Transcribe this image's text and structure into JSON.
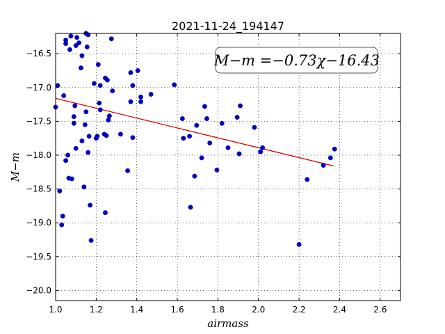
{
  "chart_data": {
    "type": "scatter",
    "title": "2021-11-24_194147",
    "xlabel": "airmass",
    "ylabel": "M−m",
    "xlim": [
      1.0,
      2.7
    ],
    "ylim": [
      -20.15,
      -16.2
    ],
    "y_inverted": true,
    "grid": true,
    "grid_style": "dotted",
    "x_ticks": [
      1.0,
      1.2,
      1.4,
      1.6,
      1.8,
      2.0,
      2.2,
      2.4,
      2.6
    ],
    "x_tick_labels": [
      "1.0",
      "1.2",
      "1.4",
      "1.6",
      "1.8",
      "2.0",
      "2.2",
      "2.4",
      "2.6"
    ],
    "y_ticks": [
      -16.5,
      -17.0,
      -17.5,
      -18.0,
      -18.5,
      -19.0,
      -19.5,
      -20.0
    ],
    "y_tick_labels": [
      "−16.5",
      "−17.0",
      "−17.5",
      "−18.0",
      "−18.5",
      "−19.0",
      "−19.5",
      "−20.0"
    ],
    "annotation": "M−m =−0.73χ−16.43",
    "fit": {
      "slope": -0.73,
      "intercept": -16.43,
      "x_range": [
        1.0,
        2.37
      ],
      "color": "#d00000"
    },
    "point_color": "#0000cc",
    "points": [
      [
        1.0,
        -17.29
      ],
      [
        1.01,
        -16.97
      ],
      [
        1.02,
        -18.53
      ],
      [
        1.03,
        -19.03
      ],
      [
        1.035,
        -18.9
      ],
      [
        1.04,
        -17.12
      ],
      [
        1.05,
        -16.3
      ],
      [
        1.05,
        -16.35
      ],
      [
        1.05,
        -18.08
      ],
      [
        1.06,
        -18.0
      ],
      [
        1.065,
        -18.34
      ],
      [
        1.07,
        -16.44
      ],
      [
        1.075,
        -16.24
      ],
      [
        1.08,
        -18.35
      ],
      [
        1.09,
        -17.43
      ],
      [
        1.09,
        -17.53
      ],
      [
        1.095,
        -17.27
      ],
      [
        1.1,
        -16.38
      ],
      [
        1.1,
        -17.9
      ],
      [
        1.105,
        -16.26
      ],
      [
        1.115,
        -16.34
      ],
      [
        1.125,
        -16.71
      ],
      [
        1.13,
        -16.53
      ],
      [
        1.13,
        -17.79
      ],
      [
        1.14,
        -18.47
      ],
      [
        1.145,
        -17.55
      ],
      [
        1.15,
        -16.2
      ],
      [
        1.15,
        -17.36
      ],
      [
        1.155,
        -16.4
      ],
      [
        1.16,
        -16.22
      ],
      [
        1.16,
        -17.96
      ],
      [
        1.165,
        -17.72
      ],
      [
        1.17,
        -18.74
      ],
      [
        1.175,
        -19.26
      ],
      [
        1.19,
        -16.94
      ],
      [
        1.2,
        -17.75
      ],
      [
        1.205,
        -17.72
      ],
      [
        1.21,
        -16.66
      ],
      [
        1.215,
        -17.23
      ],
      [
        1.22,
        -17.33
      ],
      [
        1.22,
        -16.97
      ],
      [
        1.24,
        -17.69
      ],
      [
        1.245,
        -16.86
      ],
      [
        1.245,
        -18.85
      ],
      [
        1.25,
        -17.71
      ],
      [
        1.255,
        -16.89
      ],
      [
        1.26,
        -17.48
      ],
      [
        1.265,
        -17.42
      ],
      [
        1.275,
        -16.28
      ],
      [
        1.28,
        -17.05
      ],
      [
        1.32,
        -17.69
      ],
      [
        1.355,
        -18.23
      ],
      [
        1.37,
        -17.21
      ],
      [
        1.37,
        -16.78
      ],
      [
        1.38,
        -16.97
      ],
      [
        1.38,
        -17.74
      ],
      [
        1.405,
        -16.75
      ],
      [
        1.42,
        -17.14
      ],
      [
        1.42,
        -17.21
      ],
      [
        1.47,
        -17.1
      ],
      [
        1.585,
        -16.96
      ],
      [
        1.625,
        -17.46
      ],
      [
        1.63,
        -17.75
      ],
      [
        1.66,
        -17.72
      ],
      [
        1.665,
        -18.77
      ],
      [
        1.685,
        -18.31
      ],
      [
        1.695,
        -17.56
      ],
      [
        1.72,
        -18.04
      ],
      [
        1.735,
        -17.28
      ],
      [
        1.745,
        -17.46
      ],
      [
        1.76,
        -17.82
      ],
      [
        1.795,
        -18.22
      ],
      [
        1.82,
        -17.53
      ],
      [
        1.85,
        -17.89
      ],
      [
        1.895,
        -17.44
      ],
      [
        1.905,
        -17.98
      ],
      [
        1.91,
        -17.27
      ],
      [
        1.98,
        -17.59
      ],
      [
        2.01,
        -17.95
      ],
      [
        2.02,
        -17.89
      ],
      [
        2.2,
        -19.32
      ],
      [
        2.24,
        -18.36
      ],
      [
        2.32,
        -18.15
      ],
      [
        2.355,
        -18.04
      ],
      [
        2.375,
        -17.91
      ]
    ]
  }
}
